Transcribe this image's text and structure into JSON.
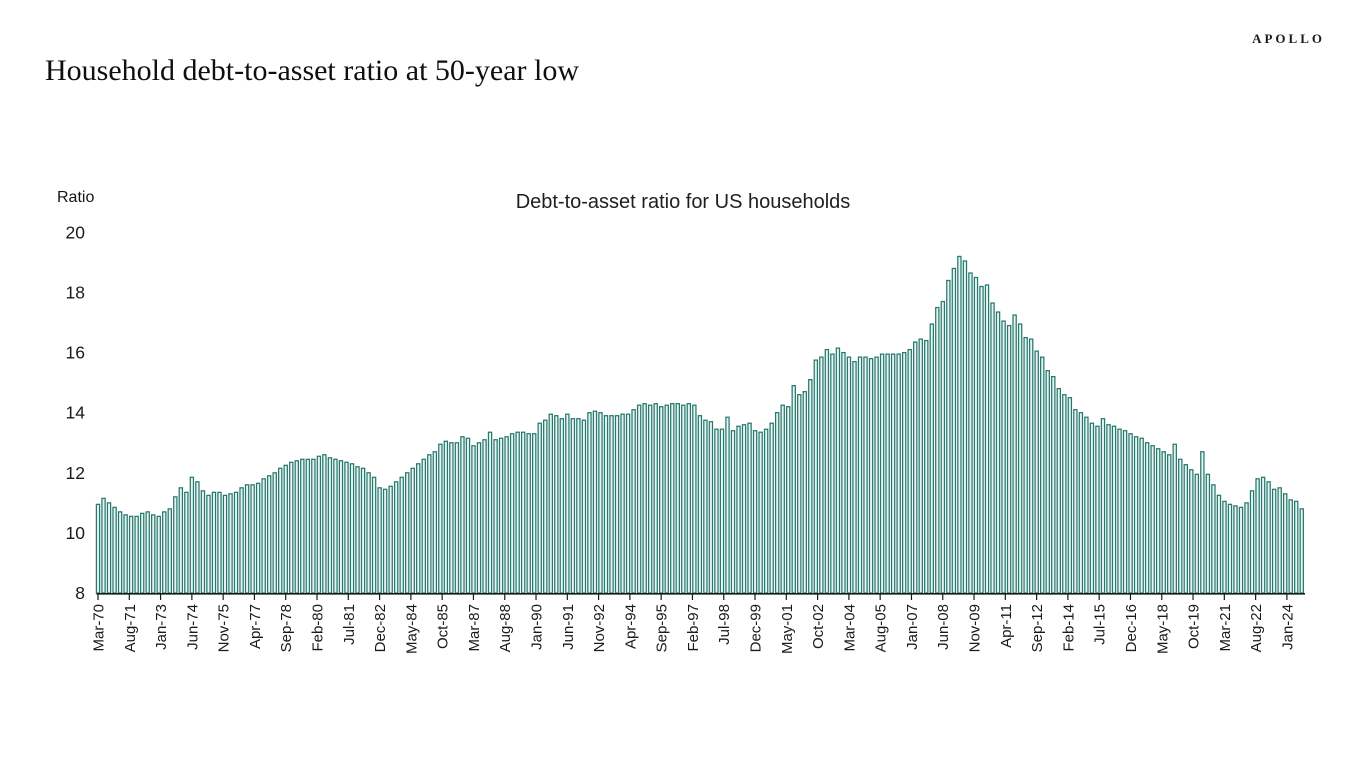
{
  "header": {
    "title": "Household debt-to-asset ratio at 50-year low",
    "brand": "APOLLO"
  },
  "chart_data": {
    "type": "bar",
    "title": "Debt-to-asset ratio for US households",
    "ylabel": "Ratio",
    "xlabel": "",
    "grid": "off",
    "legend": "none",
    "ylim": [
      8,
      20
    ],
    "y_ticks": [
      20,
      18,
      16,
      14,
      12,
      10,
      8
    ],
    "bar_color_edge": "#26796f",
    "bar_color_fill": "#e8f4f1",
    "axis_color": "#1a1a1a",
    "text_color": "#1a1a1a",
    "series_name": "Debt-to-asset ratio, US households",
    "frequency": "quarterly",
    "start_period": "Mar-1970",
    "end_period": "Sep-2024",
    "x_tick_labels": [
      "Mar-70",
      "Aug-71",
      "Jan-73",
      "Jun-74",
      "Nov-75",
      "Apr-77",
      "Sep-78",
      "Feb-80",
      "Jul-81",
      "Dec-82",
      "May-84",
      "Oct-85",
      "Mar-87",
      "Aug-88",
      "Jan-90",
      "Jun-91",
      "Nov-92",
      "Apr-94",
      "Sep-95",
      "Feb-97",
      "Jul-98",
      "Dec-99",
      "May-01",
      "Oct-02",
      "Mar-04",
      "Aug-05",
      "Jan-07",
      "Jun-08",
      "Nov-09",
      "Apr-11",
      "Sep-12",
      "Feb-14",
      "Jul-15",
      "Dec-16",
      "May-18",
      "Oct-19",
      "Mar-21",
      "Aug-22",
      "Jan-24"
    ],
    "values": [
      10.95,
      11.15,
      11.0,
      10.85,
      10.7,
      10.6,
      10.55,
      10.55,
      10.65,
      10.7,
      10.6,
      10.55,
      10.7,
      10.8,
      11.2,
      11.5,
      11.35,
      11.85,
      11.7,
      11.4,
      11.25,
      11.35,
      11.35,
      11.25,
      11.3,
      11.35,
      11.5,
      11.6,
      11.6,
      11.65,
      11.8,
      11.9,
      12.0,
      12.15,
      12.25,
      12.35,
      12.4,
      12.45,
      12.45,
      12.45,
      12.55,
      12.6,
      12.5,
      12.45,
      12.4,
      12.35,
      12.3,
      12.2,
      12.15,
      12.0,
      11.85,
      11.5,
      11.45,
      11.55,
      11.7,
      11.85,
      12.0,
      12.15,
      12.3,
      12.45,
      12.6,
      12.7,
      12.95,
      13.05,
      13.0,
      13.0,
      13.2,
      13.15,
      12.9,
      13.0,
      13.1,
      13.35,
      13.1,
      13.15,
      13.2,
      13.3,
      13.35,
      13.35,
      13.3,
      13.3,
      13.65,
      13.75,
      13.95,
      13.9,
      13.8,
      13.95,
      13.8,
      13.8,
      13.75,
      14.0,
      14.05,
      14.0,
      13.9,
      13.9,
      13.9,
      13.95,
      13.95,
      14.1,
      14.25,
      14.3,
      14.25,
      14.3,
      14.2,
      14.25,
      14.3,
      14.3,
      14.25,
      14.3,
      14.25,
      13.9,
      13.75,
      13.7,
      13.45,
      13.45,
      13.85,
      13.4,
      13.55,
      13.6,
      13.65,
      13.4,
      13.35,
      13.45,
      13.65,
      14.0,
      14.25,
      14.2,
      14.9,
      14.6,
      14.7,
      15.1,
      15.75,
      15.85,
      16.1,
      15.95,
      16.15,
      16.0,
      15.85,
      15.7,
      15.85,
      15.85,
      15.8,
      15.85,
      15.95,
      15.95,
      15.95,
      15.95,
      16.0,
      16.1,
      16.35,
      16.45,
      16.4,
      16.95,
      17.5,
      17.7,
      18.4,
      18.8,
      19.2,
      19.05,
      18.65,
      18.5,
      18.2,
      18.25,
      17.65,
      17.35,
      17.05,
      16.9,
      17.25,
      16.95,
      16.5,
      16.45,
      16.05,
      15.85,
      15.4,
      15.2,
      14.8,
      14.6,
      14.5,
      14.1,
      14.0,
      13.85,
      13.65,
      13.55,
      13.8,
      13.6,
      13.55,
      13.45,
      13.4,
      13.3,
      13.2,
      13.15,
      13.0,
      12.9,
      12.8,
      12.7,
      12.6,
      12.95,
      12.45,
      12.27,
      12.1,
      11.95,
      12.7,
      11.95,
      11.6,
      11.25,
      11.05,
      10.95,
      10.9,
      10.85,
      11.0,
      11.4,
      11.8,
      11.85,
      11.7,
      11.45,
      11.5,
      11.3,
      11.1,
      11.05,
      10.8
    ]
  }
}
